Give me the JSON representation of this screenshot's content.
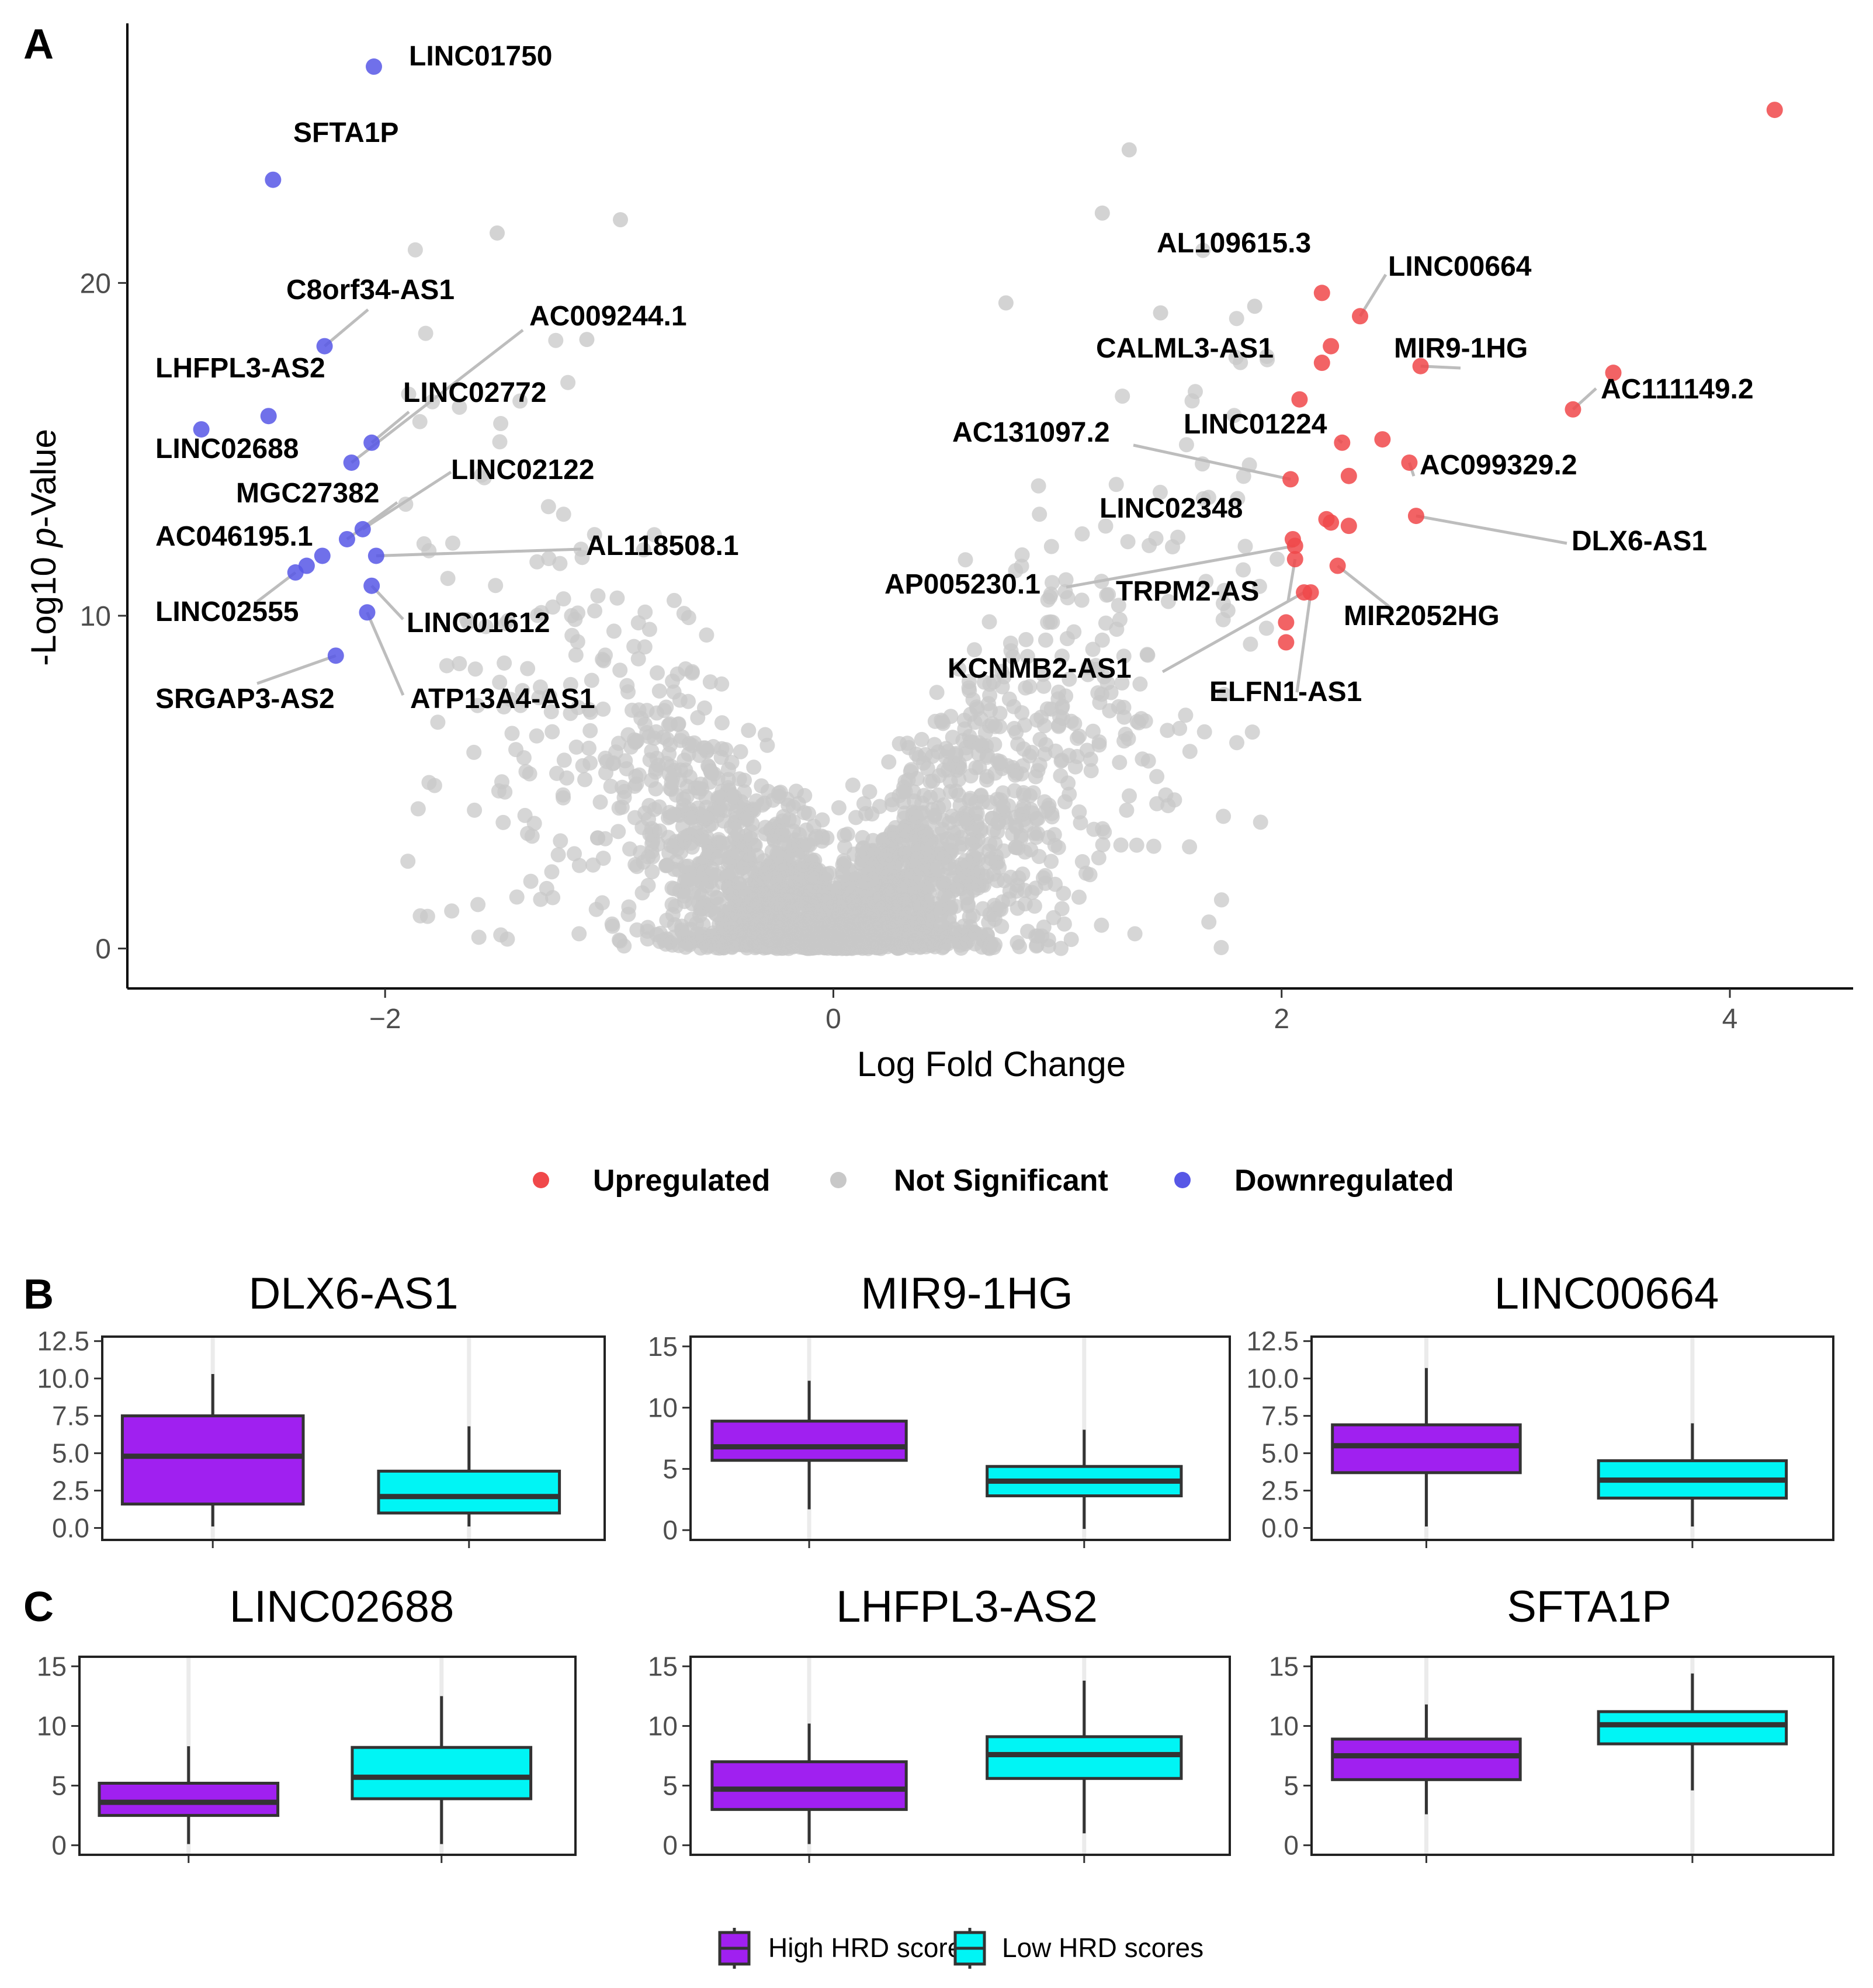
{
  "panels": {
    "a": "A",
    "b": "B",
    "c": "C"
  },
  "volcano": {
    "xlabel": "Log Fold Change",
    "ylabel_main": "-Log10 ",
    "ylabel_italic": "p",
    "ylabel_tail": "-Value",
    "x_ticks": [
      {
        "v": -2,
        "label": "−2"
      },
      {
        "v": 0,
        "label": "0"
      },
      {
        "v": 2,
        "label": "2"
      },
      {
        "v": 4,
        "label": "4"
      }
    ],
    "y_ticks": [
      {
        "v": 0,
        "label": "0"
      },
      {
        "v": 10,
        "label": "10"
      },
      {
        "v": 20,
        "label": "20"
      }
    ],
    "legend": [
      {
        "label": "Upregulated",
        "color": "#f0484a"
      },
      {
        "label": "Not Significant",
        "color": "#c8c8c8"
      },
      {
        "label": "Downregulated",
        "color": "#5757e6"
      }
    ]
  },
  "chart_data": [
    {
      "type": "scatter",
      "title": "",
      "xlabel": "Log Fold Change",
      "ylabel": "-Log10 p-Value",
      "xlim": [
        -3.15,
        4.55
      ],
      "ylim": [
        -1.2,
        27.8
      ],
      "colors": {
        "up": "#f0484a",
        "down": "#5757e6",
        "ns": "#c8c8c8"
      },
      "up": [
        {
          "x": 4.2,
          "y": 25.2
        },
        {
          "x": 2.18,
          "y": 19.7,
          "label": "AL109615.3"
        },
        {
          "x": 2.35,
          "y": 19.0,
          "label": "LINC00664"
        },
        {
          "x": 2.22,
          "y": 18.1
        },
        {
          "x": 2.18,
          "y": 17.6,
          "label": "CALML3-AS1"
        },
        {
          "x": 2.62,
          "y": 17.5,
          "label": "MIR9-1HG"
        },
        {
          "x": 3.48,
          "y": 17.3
        },
        {
          "x": 3.3,
          "y": 16.2,
          "label": "AC111149.2"
        },
        {
          "x": 2.08,
          "y": 16.5
        },
        {
          "x": 2.27,
          "y": 15.2,
          "label": "LINC01224"
        },
        {
          "x": 2.45,
          "y": 15.3
        },
        {
          "x": 2.57,
          "y": 14.6,
          "label": "AC099329.2"
        },
        {
          "x": 2.3,
          "y": 14.2
        },
        {
          "x": 2.04,
          "y": 14.1,
          "label": "AC131097.2"
        },
        {
          "x": 2.2,
          "y": 12.9,
          "label": "LINC02348"
        },
        {
          "x": 2.22,
          "y": 12.8
        },
        {
          "x": 2.3,
          "y": 12.7
        },
        {
          "x": 2.6,
          "y": 13.0,
          "label": "DLX6-AS1"
        },
        {
          "x": 2.05,
          "y": 12.3
        },
        {
          "x": 2.06,
          "y": 12.1,
          "label": "AP005230.1"
        },
        {
          "x": 2.06,
          "y": 11.7,
          "label": "TRPM2-AS"
        },
        {
          "x": 2.25,
          "y": 11.5,
          "label": "MIR2052HG"
        },
        {
          "x": 2.1,
          "y": 10.7,
          "label": "KCNMB2-AS1"
        },
        {
          "x": 2.13,
          "y": 10.7,
          "label": "ELFN1-AS1"
        },
        {
          "x": 2.02,
          "y": 9.8
        },
        {
          "x": 2.02,
          "y": 9.2
        }
      ],
      "down": [
        {
          "x": -2.05,
          "y": 26.5,
          "label": "LINC01750"
        },
        {
          "x": -2.5,
          "y": 23.1,
          "label": "SFTA1P"
        },
        {
          "x": -2.27,
          "y": 18.1,
          "label": "C8orf34-AS1"
        },
        {
          "x": -2.52,
          "y": 16.0,
          "label": "LHFPL3-AS2"
        },
        {
          "x": -2.82,
          "y": 15.6,
          "label": "LINC02688"
        },
        {
          "x": -2.06,
          "y": 15.2,
          "label": "LINC02772"
        },
        {
          "x": -2.15,
          "y": 14.6,
          "label": "AC009244.1"
        },
        {
          "x": -2.1,
          "y": 12.6,
          "label": "LINC02122"
        },
        {
          "x": -2.17,
          "y": 12.3,
          "label": "MGC27382"
        },
        {
          "x": -2.28,
          "y": 11.8
        },
        {
          "x": -2.35,
          "y": 11.5,
          "label": "AC046195.1"
        },
        {
          "x": -2.4,
          "y": 11.3,
          "label": "LINC02555"
        },
        {
          "x": -2.04,
          "y": 11.8,
          "label": "AL118508.1"
        },
        {
          "x": -2.06,
          "y": 10.9,
          "label": "LINC01612"
        },
        {
          "x": -2.08,
          "y": 10.1,
          "label": "ATP13A4-AS1"
        },
        {
          "x": -2.22,
          "y": 8.8,
          "label": "SRGAP3-AS2"
        }
      ],
      "not_significant": {
        "count": 2600,
        "description_free": true
      }
    },
    {
      "type": "box",
      "panel": "B",
      "title": "DLX6-AS1",
      "ylim": [
        -0.8,
        12.8
      ],
      "y_ticks": [
        0.0,
        2.5,
        5.0,
        7.5,
        10.0,
        12.5
      ],
      "y_tick_labels": [
        "0.0",
        "2.5",
        "5.0",
        "7.5",
        "10.0",
        "12.5"
      ],
      "groups": [
        {
          "name": "High HRD scores",
          "min": 0.1,
          "q1": 1.6,
          "median": 4.8,
          "q3": 7.5,
          "max": 10.3
        },
        {
          "name": "Low HRD scores",
          "min": 0.1,
          "q1": 1.0,
          "median": 2.1,
          "q3": 3.8,
          "max": 6.8
        }
      ]
    },
    {
      "type": "box",
      "panel": "B",
      "title": "MIR9-1HG",
      "ylim": [
        -0.8,
        15.8
      ],
      "y_ticks": [
        0,
        5,
        10,
        15
      ],
      "y_tick_labels": [
        "0",
        "5",
        "10",
        "15"
      ],
      "groups": [
        {
          "name": "High HRD scores",
          "min": 1.7,
          "q1": 5.7,
          "median": 6.8,
          "q3": 8.9,
          "max": 12.2
        },
        {
          "name": "Low HRD scores",
          "min": 0.1,
          "q1": 2.8,
          "median": 4.0,
          "q3": 5.2,
          "max": 8.2
        }
      ]
    },
    {
      "type": "box",
      "panel": "B",
      "title": "LINC00664",
      "ylim": [
        -0.8,
        12.8
      ],
      "y_ticks": [
        0.0,
        2.5,
        5.0,
        7.5,
        10.0,
        12.5
      ],
      "y_tick_labels": [
        "0.0",
        "2.5",
        "5.0",
        "7.5",
        "10.0",
        "12.5"
      ],
      "groups": [
        {
          "name": "High HRD scores",
          "min": 0.1,
          "q1": 3.7,
          "median": 5.5,
          "q3": 6.9,
          "max": 10.7
        },
        {
          "name": "Low HRD scores",
          "min": 0.1,
          "q1": 2.0,
          "median": 3.2,
          "q3": 4.5,
          "max": 7.0
        }
      ]
    },
    {
      "type": "box",
      "panel": "C",
      "title": "LINC02688",
      "ylim": [
        -0.8,
        15.8
      ],
      "y_ticks": [
        0,
        5,
        10,
        15
      ],
      "y_tick_labels": [
        "0",
        "5",
        "10",
        "15"
      ],
      "groups": [
        {
          "name": "High HRD scores",
          "min": 0.1,
          "q1": 2.5,
          "median": 3.6,
          "q3": 5.2,
          "max": 8.3
        },
        {
          "name": "Low HRD scores",
          "min": 0.1,
          "q1": 3.9,
          "median": 5.7,
          "q3": 8.2,
          "max": 12.5
        }
      ]
    },
    {
      "type": "box",
      "panel": "C",
      "title": "LHFPL3-AS2",
      "ylim": [
        -0.8,
        15.8
      ],
      "y_ticks": [
        0,
        5,
        10,
        15
      ],
      "y_tick_labels": [
        "0",
        "5",
        "10",
        "15"
      ],
      "groups": [
        {
          "name": "High HRD scores",
          "min": 0.1,
          "q1": 3.0,
          "median": 4.7,
          "q3": 7.0,
          "max": 10.2
        },
        {
          "name": "Low HRD scores",
          "min": 1.0,
          "q1": 5.6,
          "median": 7.6,
          "q3": 9.1,
          "max": 13.8
        }
      ]
    },
    {
      "type": "box",
      "panel": "C",
      "title": "SFTA1P",
      "ylim": [
        -0.8,
        15.8
      ],
      "y_ticks": [
        0,
        5,
        10,
        15
      ],
      "y_tick_labels": [
        "0",
        "5",
        "10",
        "15"
      ],
      "groups": [
        {
          "name": "High HRD scores",
          "min": 2.6,
          "q1": 5.5,
          "median": 7.5,
          "q3": 8.9,
          "max": 11.8
        },
        {
          "name": "Low HRD scores",
          "min": 4.6,
          "q1": 8.5,
          "median": 10.1,
          "q3": 11.2,
          "max": 14.4
        }
      ]
    }
  ],
  "box_legend": [
    {
      "label": "High HRD scores",
      "color": "#a020f0"
    },
    {
      "label": "Low HRD scores",
      "color": "#00f5f5"
    }
  ]
}
